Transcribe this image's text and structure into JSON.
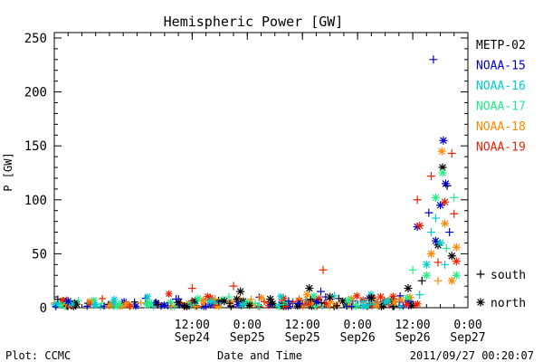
{
  "chart_data": {
    "type": "scatter",
    "title": "Hemispheric Power [GW]",
    "xlabel": "Date and Time",
    "ylabel": "P [GW]",
    "ylim": [
      0,
      255
    ],
    "yticks": [
      0,
      50,
      100,
      150,
      200,
      250
    ],
    "xlim": [
      "2011-09-23 06:00",
      "2011-09-27 00:00"
    ],
    "xticks": [
      {
        "t": "2011-09-24 12:00",
        "time": "12:00",
        "date": "Sep24"
      },
      {
        "t": "2011-09-25 00:00",
        "time": "0:00",
        "date": "Sep25"
      },
      {
        "t": "2011-09-25 12:00",
        "time": "12:00",
        "date": "Sep25"
      },
      {
        "t": "2011-09-26 00:00",
        "time": "0:00",
        "date": "Sep26"
      },
      {
        "t": "2011-09-26 12:00",
        "time": "12:00",
        "date": "Sep26"
      },
      {
        "t": "2011-09-27 00:00",
        "time": "0:00",
        "date": "Sep27"
      }
    ],
    "grid": false,
    "legend_position": "right",
    "marker_legend": [
      {
        "symbol": "+",
        "label": "south"
      },
      {
        "symbol": "*",
        "label": "north"
      }
    ],
    "series": [
      {
        "name": "METP-02",
        "color": "#000000",
        "points": [
          {
            "t": "2011-09-24 04:30",
            "p": 3,
            "m": "+"
          },
          {
            "t": "2011-09-24 09:00",
            "p": 5,
            "m": "*"
          },
          {
            "t": "2011-09-24 19:00",
            "p": 6,
            "m": "*"
          },
          {
            "t": "2011-09-24 22:30",
            "p": 15,
            "m": "*"
          },
          {
            "t": "2011-09-25 05:00",
            "p": 8,
            "m": "*"
          },
          {
            "t": "2011-09-25 13:30",
            "p": 18,
            "m": "*"
          },
          {
            "t": "2011-09-25 18:00",
            "p": 10,
            "m": "*"
          },
          {
            "t": "2011-09-26 03:00",
            "p": 9,
            "m": "*"
          },
          {
            "t": "2011-09-26 11:00",
            "p": 18,
            "m": "*"
          },
          {
            "t": "2011-09-26 14:00",
            "p": 25,
            "m": "+"
          },
          {
            "t": "2011-09-26 17:30",
            "p": 58,
            "m": "*"
          },
          {
            "t": "2011-09-26 18:30",
            "p": 130,
            "m": "*"
          },
          {
            "t": "2011-09-26 19:30",
            "p": 113,
            "m": "+"
          },
          {
            "t": "2011-09-26 20:30",
            "p": 48,
            "m": "*"
          }
        ]
      },
      {
        "name": "NOAA-15",
        "color": "#0000cc",
        "points": [
          {
            "t": "2011-09-23 09:00",
            "p": 6,
            "m": "*"
          },
          {
            "t": "2011-09-24 08:30",
            "p": 8,
            "m": "+"
          },
          {
            "t": "2011-09-25 09:00",
            "p": 6,
            "m": "+"
          },
          {
            "t": "2011-09-25 16:00",
            "p": 15,
            "m": "+"
          },
          {
            "t": "2011-09-26 13:00",
            "p": 75,
            "m": "*"
          },
          {
            "t": "2011-09-26 15:30",
            "p": 88,
            "m": "+"
          },
          {
            "t": "2011-09-26 16:30",
            "p": 230,
            "m": "+"
          },
          {
            "t": "2011-09-26 17:00",
            "p": 62,
            "m": "*"
          },
          {
            "t": "2011-09-26 18:00",
            "p": 95,
            "m": "*"
          },
          {
            "t": "2011-09-26 18:40",
            "p": 155,
            "m": "*"
          },
          {
            "t": "2011-09-26 19:10",
            "p": 115,
            "m": "*"
          },
          {
            "t": "2011-09-26 20:00",
            "p": 70,
            "m": "+"
          }
        ]
      },
      {
        "name": "NOAA-16",
        "color": "#00cccc",
        "points": [
          {
            "t": "2011-09-23 15:00",
            "p": 3,
            "m": "+"
          },
          {
            "t": "2011-09-24 16:00",
            "p": 6,
            "m": "*"
          },
          {
            "t": "2011-09-25 19:00",
            "p": 11,
            "m": "+"
          },
          {
            "t": "2011-09-26 06:00",
            "p": 5,
            "m": "*"
          },
          {
            "t": "2011-09-26 13:30",
            "p": 12,
            "m": "+"
          },
          {
            "t": "2011-09-26 15:00",
            "p": 40,
            "m": "*"
          },
          {
            "t": "2011-09-26 16:00",
            "p": 70,
            "m": "+"
          },
          {
            "t": "2011-09-26 17:00",
            "p": 83,
            "m": "+"
          },
          {
            "t": "2011-09-26 18:00",
            "p": 60,
            "m": "*"
          },
          {
            "t": "2011-09-26 19:00",
            "p": 40,
            "m": "+"
          }
        ]
      },
      {
        "name": "NOAA-17",
        "color": "#22ee88",
        "points": [
          {
            "t": "2011-09-23 20:00",
            "p": 3,
            "m": "*"
          },
          {
            "t": "2011-09-24 20:00",
            "p": 10,
            "m": "+"
          },
          {
            "t": "2011-09-25 22:00",
            "p": 7,
            "m": "*"
          },
          {
            "t": "2011-09-26 12:00",
            "p": 35,
            "m": "+"
          },
          {
            "t": "2011-09-26 15:00",
            "p": 30,
            "m": "*"
          },
          {
            "t": "2011-09-26 17:00",
            "p": 102,
            "m": "*"
          },
          {
            "t": "2011-09-26 18:30",
            "p": 125,
            "m": "*"
          },
          {
            "t": "2011-09-26 19:20",
            "p": 55,
            "m": "+"
          },
          {
            "t": "2011-09-26 21:00",
            "p": 102,
            "m": "+"
          },
          {
            "t": "2011-09-26 21:30",
            "p": 30,
            "m": "*"
          }
        ]
      },
      {
        "name": "NOAA-18",
        "color": "#ff8800",
        "points": [
          {
            "t": "2011-09-23 18:00",
            "p": 2,
            "m": "*"
          },
          {
            "t": "2011-09-24 17:00",
            "p": 8,
            "m": "+"
          },
          {
            "t": "2011-09-25 13:00",
            "p": 12,
            "m": "*"
          },
          {
            "t": "2011-09-26 08:00",
            "p": 5,
            "m": "*"
          },
          {
            "t": "2011-09-26 16:00",
            "p": 50,
            "m": "*"
          },
          {
            "t": "2011-09-26 17:30",
            "p": 25,
            "m": "+"
          },
          {
            "t": "2011-09-26 18:20",
            "p": 145,
            "m": "*"
          },
          {
            "t": "2011-09-26 19:00",
            "p": 78,
            "m": "*"
          },
          {
            "t": "2011-09-26 20:30",
            "p": 25,
            "m": "*"
          },
          {
            "t": "2011-09-26 21:30",
            "p": 56,
            "m": "*"
          }
        ]
      },
      {
        "name": "NOAA-19",
        "color": "#ee2200",
        "points": [
          {
            "t": "2011-09-24 12:00",
            "p": 18,
            "m": "+"
          },
          {
            "t": "2011-09-24 21:00",
            "p": 20,
            "m": "+"
          },
          {
            "t": "2011-09-25 16:30",
            "p": 35,
            "m": "+"
          },
          {
            "t": "2011-09-26 05:00",
            "p": 10,
            "m": "*"
          },
          {
            "t": "2011-09-26 13:00",
            "p": 100,
            "m": "+"
          },
          {
            "t": "2011-09-26 13:30",
            "p": 76,
            "m": "*"
          },
          {
            "t": "2011-09-26 16:00",
            "p": 122,
            "m": "+"
          },
          {
            "t": "2011-09-26 17:30",
            "p": 42,
            "m": "+"
          },
          {
            "t": "2011-09-26 19:00",
            "p": 98,
            "m": "*"
          },
          {
            "t": "2011-09-26 20:30",
            "p": 143,
            "m": "+"
          },
          {
            "t": "2011-09-26 21:00",
            "p": 87,
            "m": "+"
          },
          {
            "t": "2011-09-26 21:30",
            "p": 43,
            "m": "*"
          }
        ]
      }
    ]
  },
  "footer": {
    "plot_credit": "Plot: CCMC",
    "timestamp": "2011/09/27 00:20:07"
  }
}
